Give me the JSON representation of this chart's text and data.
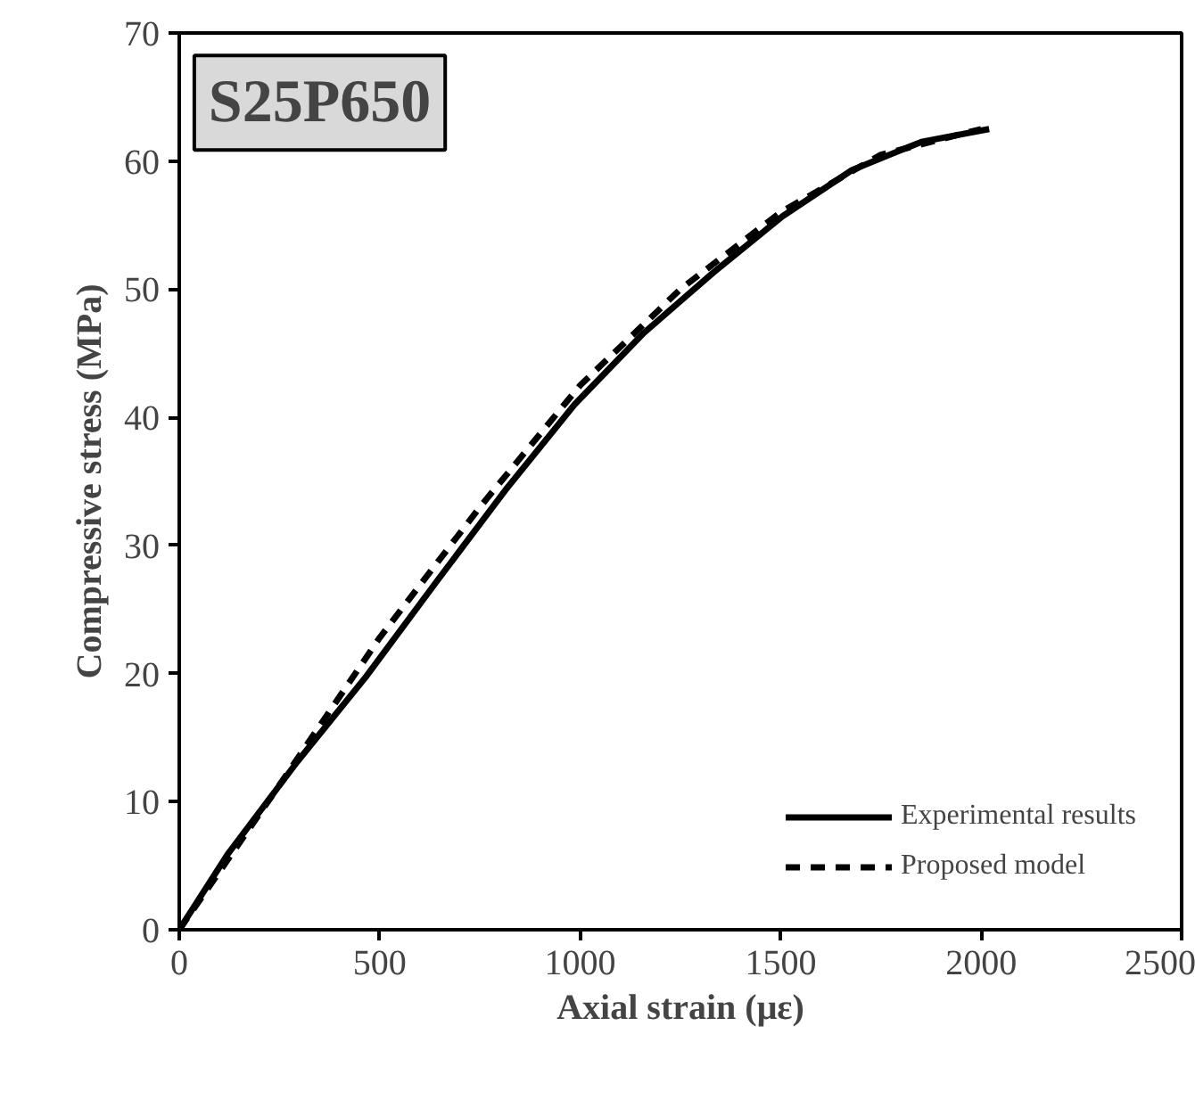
{
  "chart_data": {
    "type": "line",
    "xlabel": "Axial strain (με)",
    "ylabel": "Compressive stress (MPa)",
    "annotations": [
      "S25P650"
    ],
    "xlim": [
      0,
      2500
    ],
    "ylim": [
      0,
      70
    ],
    "xticks": [
      0,
      500,
      1000,
      1500,
      2000,
      2500
    ],
    "yticks": [
      0,
      10,
      20,
      30,
      40,
      50,
      60,
      70
    ],
    "grid": false,
    "legend": "bottom right",
    "series": [
      {
        "name": "Experimental results",
        "color": "#000000",
        "line_style": "solid",
        "x": [
          0,
          121,
          294,
          467,
          640,
          813,
          986,
          1159,
          1332,
          1505,
          1678,
          1851,
          2020
        ],
        "values": [
          0,
          5.9,
          13.1,
          19.8,
          27.1,
          34.3,
          41.0,
          46.6,
          51.3,
          55.7,
          59.3,
          61.5,
          62.5
        ]
      },
      {
        "name": "Proposed model",
        "color": "#000000",
        "line_style": "dashed",
        "x": [
          0,
          250,
          500,
          750,
          1000,
          1250,
          1500,
          1750,
          2000
        ],
        "values": [
          0,
          11.3,
          22.8,
          33.0,
          42.5,
          50.0,
          56.0,
          60.5,
          62.5
        ]
      }
    ]
  }
}
